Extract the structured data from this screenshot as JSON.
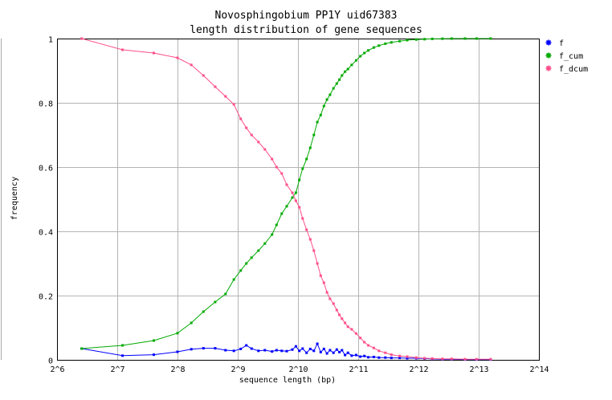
{
  "chart_data": {
    "type": "line",
    "title": "Novosphingobium PP1Y uid67383",
    "subtitle": "length distribution of gene sequences",
    "xlabel": "sequence length (bp)",
    "ylabel": "frequency",
    "x_scale": "log2",
    "xlim": [
      64,
      16384
    ],
    "ylim": [
      0,
      1
    ],
    "x_ticks": [
      {
        "value": 64,
        "label": "2^6"
      },
      {
        "value": 128,
        "label": "2^7"
      },
      {
        "value": 256,
        "label": "2^8"
      },
      {
        "value": 512,
        "label": "2^9"
      },
      {
        "value": 1024,
        "label": "2^10"
      },
      {
        "value": 2048,
        "label": "2^11"
      },
      {
        "value": 4096,
        "label": "2^12"
      },
      {
        "value": 8192,
        "label": "2^13"
      },
      {
        "value": 16384,
        "label": "2^14"
      }
    ],
    "y_ticks": [
      {
        "value": 0,
        "label": "0"
      },
      {
        "value": 0.2,
        "label": "0.2"
      },
      {
        "value": 0.4,
        "label": "0.4"
      },
      {
        "value": 0.6,
        "label": "0.6"
      },
      {
        "value": 0.8,
        "label": "0.8"
      },
      {
        "value": 1,
        "label": "1"
      }
    ],
    "grid": true,
    "legend_position": "right-top",
    "series": [
      {
        "name": "f",
        "color": "#0000ff",
        "x": [
          85,
          136,
          195,
          256,
          300,
          345,
          395,
          445,
          490,
          530,
          565,
          600,
          650,
          700,
          760,
          800,
          850,
          900,
          960,
          1000,
          1040,
          1080,
          1130,
          1180,
          1230,
          1280,
          1330,
          1380,
          1430,
          1480,
          1540,
          1600,
          1650,
          1700,
          1760,
          1820,
          1900,
          2000,
          2100,
          2200,
          2300,
          2450,
          2600,
          2800,
          3000,
          3300,
          3600,
          4000,
          4400,
          4800,
          5400,
          6000,
          7000,
          8000,
          9400
        ],
        "y": [
          0.035,
          0.013,
          0.016,
          0.025,
          0.033,
          0.036,
          0.036,
          0.03,
          0.028,
          0.034,
          0.045,
          0.035,
          0.028,
          0.03,
          0.026,
          0.03,
          0.028,
          0.027,
          0.032,
          0.042,
          0.028,
          0.035,
          0.022,
          0.034,
          0.028,
          0.05,
          0.024,
          0.034,
          0.02,
          0.03,
          0.022,
          0.032,
          0.024,
          0.03,
          0.015,
          0.022,
          0.013,
          0.015,
          0.01,
          0.012,
          0.008,
          0.009,
          0.007,
          0.007,
          0.006,
          0.006,
          0.005,
          0.005,
          0.004,
          0.003,
          0.002,
          0.002,
          0.001,
          0.001,
          0.001
        ]
      },
      {
        "name": "f_cum",
        "color": "#00aa00",
        "x": [
          85,
          136,
          195,
          256,
          300,
          345,
          395,
          445,
          490,
          530,
          565,
          600,
          650,
          700,
          760,
          800,
          850,
          900,
          960,
          1000,
          1040,
          1080,
          1130,
          1180,
          1230,
          1280,
          1330,
          1380,
          1430,
          1480,
          1540,
          1600,
          1650,
          1700,
          1760,
          1820,
          1900,
          2000,
          2100,
          2200,
          2300,
          2450,
          2600,
          2800,
          3000,
          3300,
          3600,
          4000,
          4400,
          4800,
          5400,
          6000,
          7000,
          8000,
          9400
        ],
        "y": [
          0.035,
          0.045,
          0.06,
          0.083,
          0.115,
          0.15,
          0.18,
          0.205,
          0.25,
          0.278,
          0.3,
          0.318,
          0.34,
          0.362,
          0.39,
          0.42,
          0.455,
          0.478,
          0.505,
          0.52,
          0.56,
          0.595,
          0.625,
          0.66,
          0.7,
          0.74,
          0.762,
          0.79,
          0.81,
          0.825,
          0.845,
          0.86,
          0.872,
          0.885,
          0.897,
          0.905,
          0.918,
          0.932,
          0.945,
          0.955,
          0.963,
          0.972,
          0.978,
          0.984,
          0.988,
          0.992,
          0.995,
          0.997,
          0.998,
          0.999,
          0.9995,
          1.0,
          1.0,
          1.0,
          1.0
        ]
      },
      {
        "name": "f_dcum",
        "color": "#ff4f8b",
        "x": [
          85,
          136,
          195,
          256,
          300,
          345,
          395,
          445,
          490,
          530,
          565,
          600,
          650,
          700,
          760,
          800,
          850,
          900,
          960,
          1000,
          1040,
          1080,
          1130,
          1180,
          1230,
          1280,
          1330,
          1380,
          1430,
          1480,
          1540,
          1600,
          1650,
          1700,
          1760,
          1820,
          1900,
          2000,
          2100,
          2200,
          2300,
          2450,
          2600,
          2800,
          3000,
          3300,
          3600,
          4000,
          4400,
          4800,
          5400,
          6000,
          7000,
          8000,
          9400
        ],
        "y": [
          1.0,
          0.965,
          0.955,
          0.94,
          0.918,
          0.885,
          0.85,
          0.82,
          0.795,
          0.75,
          0.722,
          0.7,
          0.678,
          0.655,
          0.625,
          0.6,
          0.58,
          0.545,
          0.52,
          0.495,
          0.475,
          0.44,
          0.405,
          0.375,
          0.34,
          0.3,
          0.262,
          0.24,
          0.21,
          0.19,
          0.175,
          0.155,
          0.14,
          0.128,
          0.115,
          0.103,
          0.095,
          0.082,
          0.068,
          0.055,
          0.045,
          0.037,
          0.028,
          0.022,
          0.016,
          0.012,
          0.01,
          0.007,
          0.005,
          0.004,
          0.003,
          0.003,
          0.002,
          0.002,
          0.002
        ]
      }
    ]
  }
}
